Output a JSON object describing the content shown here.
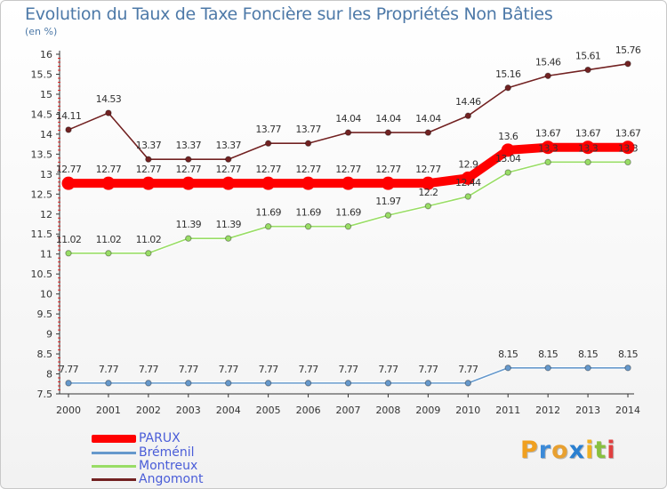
{
  "header": {
    "title": "Evolution du Taux de Taxe Foncière sur les Propriétés Non Bâties",
    "unit": "(en %)"
  },
  "chart_data": {
    "type": "line",
    "title": "Evolution du Taux de Taxe Foncière sur les Propriétés Non Bâties",
    "ylabel": "(en %)",
    "xlabel": "",
    "x": [
      "2000",
      "2001",
      "2002",
      "2003",
      "2004",
      "2005",
      "2006",
      "2007",
      "2008",
      "2009",
      "2010",
      "2011",
      "2012",
      "2013",
      "2014"
    ],
    "ylim": [
      7.5,
      16
    ],
    "yticks": [
      "7.5",
      "8",
      "8.5",
      "9",
      "9.5",
      "10",
      "10.5",
      "11",
      "11.5",
      "12",
      "12.5",
      "13",
      "13.5",
      "14",
      "14.5",
      "15",
      "15.5",
      "16"
    ],
    "grid": false,
    "legend_position": "bottom-left",
    "series": [
      {
        "name": "Angomont",
        "color": "#722222",
        "values": [
          14.11,
          14.53,
          13.37,
          13.37,
          13.37,
          13.77,
          13.77,
          14.04,
          14.04,
          14.04,
          14.46,
          15.16,
          15.46,
          15.61,
          15.76
        ],
        "labels": [
          "14.11",
          "14.53",
          "13.37",
          "13.37",
          "13.37",
          "13.77",
          "13.77",
          "14.04",
          "14.04",
          "14.04",
          "14.46",
          "15.16",
          "15.46",
          "15.61",
          "15.76"
        ]
      },
      {
        "name": "PARUX",
        "color": "#ff0000",
        "values": [
          12.77,
          12.77,
          12.77,
          12.77,
          12.77,
          12.77,
          12.77,
          12.77,
          12.77,
          12.77,
          12.9,
          13.6,
          13.67,
          13.67,
          13.67
        ],
        "labels": [
          "12.77",
          "12.77",
          "12.77",
          "12.77",
          "12.77",
          "12.77",
          "12.77",
          "12.77",
          "12.77",
          "12.77",
          "12.9",
          "13.6",
          "13.67",
          "13.67",
          "13.67"
        ]
      },
      {
        "name": "Montreux",
        "color": "#99dd66",
        "values": [
          11.02,
          11.02,
          11.02,
          11.39,
          11.39,
          11.69,
          11.69,
          11.69,
          11.97,
          12.2,
          12.44,
          13.04,
          13.3,
          13.3,
          13.3
        ],
        "labels": [
          "11.02",
          "11.02",
          "11.02",
          "11.39",
          "11.39",
          "11.69",
          "11.69",
          "11.69",
          "11.97",
          "12.2",
          "12.44",
          "13.04",
          "13.3",
          "13.3",
          "13.3"
        ]
      },
      {
        "name": "Bréménil",
        "color": "#6699cc",
        "values": [
          7.77,
          7.77,
          7.77,
          7.77,
          7.77,
          7.77,
          7.77,
          7.77,
          7.77,
          7.77,
          7.77,
          8.15,
          8.15,
          8.15,
          8.15
        ],
        "labels": [
          "7.77",
          "7.77",
          "7.77",
          "7.77",
          "7.77",
          "7.77",
          "7.77",
          "7.77",
          "7.77",
          "7.77",
          "7.77",
          "8.15",
          "8.15",
          "8.15",
          "8.15"
        ]
      }
    ]
  },
  "legend": {
    "items": [
      {
        "label": "PARUX",
        "color": "#ff0000"
      },
      {
        "label": "Bréménil",
        "color": "#6699cc"
      },
      {
        "label": "Montreux",
        "color": "#99dd66"
      },
      {
        "label": "Angomont",
        "color": "#722222"
      }
    ]
  },
  "logo": {
    "text": "Proxiti",
    "letters": [
      {
        "ch": "P",
        "color": "#f0a020"
      },
      {
        "ch": "r",
        "color": "#3b8ad8"
      },
      {
        "ch": "o",
        "color": "#e8a030"
      },
      {
        "ch": "x",
        "color": "#2a7fd0"
      },
      {
        "ch": "i",
        "color": "#f0b020"
      },
      {
        "ch": "t",
        "color": "#88c040"
      },
      {
        "ch": "i",
        "color": "#e04040"
      }
    ]
  }
}
